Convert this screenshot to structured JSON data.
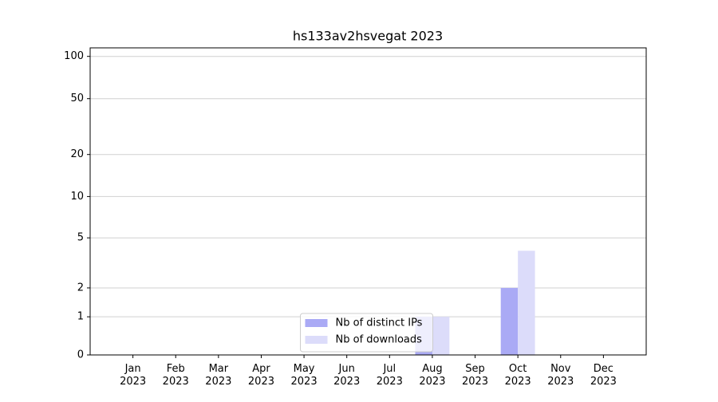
{
  "chart_data": {
    "type": "bar",
    "title": "hs133av2hsvegat 2023",
    "categories": [
      "Jan 2023",
      "Feb 2023",
      "Mar 2023",
      "Apr 2023",
      "May 2023",
      "Jun 2023",
      "Jul 2023",
      "Aug 2023",
      "Sep 2023",
      "Oct 2023",
      "Nov 2023",
      "Dec 2023"
    ],
    "series": [
      {
        "name": "Nb of distinct IPs",
        "color": "#aaaaf5",
        "values": [
          0,
          0,
          0,
          0,
          0,
          0,
          0,
          1,
          0,
          2,
          0,
          0
        ]
      },
      {
        "name": "Nb of downloads",
        "color": "#dcdcfa",
        "values": [
          0,
          0,
          0,
          0,
          0,
          0,
          0,
          1,
          0,
          4,
          0,
          0
        ]
      }
    ],
    "yscale": "asinh",
    "ylim": [
      0,
      115
    ],
    "yticks": [
      0,
      1,
      2,
      5,
      10,
      20,
      50,
      100
    ],
    "grid": true,
    "legend": "lower center"
  }
}
